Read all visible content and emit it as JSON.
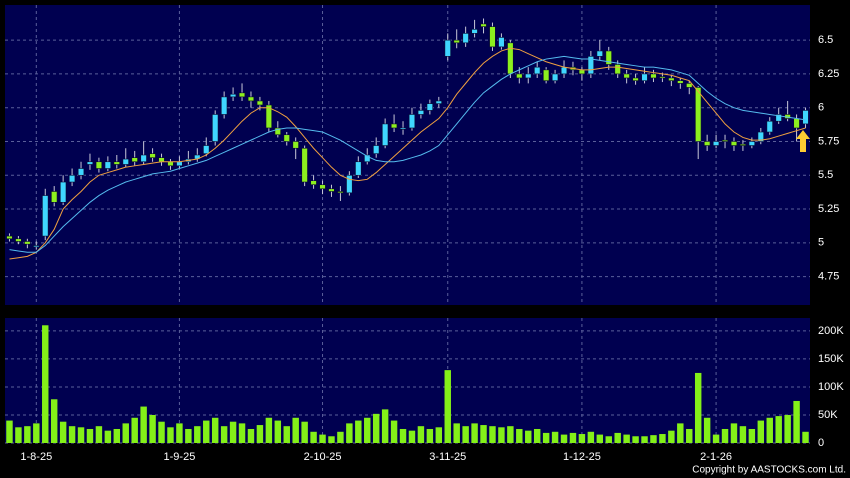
{
  "chart_data": [
    {
      "type": "candlestick",
      "up_color": "#3fd6ff",
      "down_color": "#8cf01e",
      "open": [
        5.05,
        5.03,
        5.01,
        4.97,
        5.05,
        5.38,
        5.3,
        5.45,
        5.5,
        5.58,
        5.6,
        5.55,
        5.6,
        5.58,
        5.63,
        5.6,
        5.66,
        5.63,
        5.6,
        5.57,
        5.6,
        5.62,
        5.66,
        5.75,
        5.95,
        6.08,
        6.11,
        6.08,
        6.05,
        6.02,
        5.85,
        5.8,
        5.75,
        5.7,
        5.46,
        5.43,
        5.4,
        5.38,
        5.37,
        5.5,
        5.6,
        5.66,
        5.72,
        5.88,
        5.84,
        5.85,
        5.95,
        5.98,
        6.03,
        6.38,
        6.5,
        6.48,
        6.55,
        6.62,
        6.6,
        6.45,
        6.48,
        6.25,
        6.22,
        6.25,
        6.28,
        6.2,
        6.25,
        6.3,
        6.28,
        6.25,
        6.38,
        6.42,
        6.32,
        6.25,
        6.22,
        6.2,
        6.25,
        6.23,
        6.22,
        6.2,
        6.18,
        6.15,
        5.75,
        5.72,
        5.76,
        5.75,
        5.73,
        5.72,
        5.75,
        5.82,
        5.9,
        5.95,
        5.92,
        5.88
      ],
      "high": [
        5.07,
        5.05,
        5.03,
        5.01,
        5.4,
        5.42,
        5.5,
        5.55,
        5.6,
        5.66,
        5.63,
        5.64,
        5.65,
        5.7,
        5.68,
        5.75,
        5.7,
        5.66,
        5.62,
        5.64,
        5.68,
        5.7,
        5.78,
        5.98,
        6.12,
        6.15,
        6.18,
        6.12,
        6.08,
        6.05,
        5.9,
        5.82,
        5.78,
        5.72,
        5.5,
        5.46,
        5.43,
        5.42,
        5.53,
        5.64,
        5.7,
        5.78,
        5.92,
        5.95,
        5.9,
        6.0,
        6.03,
        6.06,
        6.08,
        6.55,
        6.58,
        6.6,
        6.65,
        6.66,
        6.63,
        6.55,
        6.5,
        6.3,
        6.3,
        6.34,
        6.3,
        6.28,
        6.35,
        6.34,
        6.3,
        6.42,
        6.5,
        6.45,
        6.35,
        6.28,
        6.25,
        6.3,
        6.28,
        6.26,
        6.24,
        6.22,
        6.2,
        6.16,
        5.8,
        5.8,
        5.8,
        5.78,
        5.76,
        5.78,
        5.85,
        5.93,
        6.0,
        6.05,
        5.95,
        6.0
      ],
      "low": [
        5.01,
        4.99,
        4.96,
        4.95,
        5.02,
        5.27,
        5.28,
        5.42,
        5.47,
        5.54,
        5.52,
        5.53,
        5.55,
        5.56,
        5.57,
        5.58,
        5.6,
        5.57,
        5.54,
        5.55,
        5.58,
        5.6,
        5.64,
        5.72,
        5.92,
        6.05,
        6.05,
        6.0,
        5.98,
        5.82,
        5.78,
        5.72,
        5.62,
        5.42,
        5.4,
        5.36,
        5.34,
        5.31,
        5.35,
        5.48,
        5.58,
        5.63,
        5.7,
        5.82,
        5.8,
        5.83,
        5.92,
        5.95,
        6.0,
        6.35,
        6.44,
        6.45,
        6.52,
        6.55,
        6.42,
        6.43,
        6.22,
        6.18,
        6.18,
        6.22,
        6.18,
        6.18,
        6.22,
        6.24,
        6.2,
        6.22,
        6.35,
        6.28,
        6.22,
        6.18,
        6.17,
        6.18,
        6.19,
        6.19,
        6.16,
        6.14,
        6.1,
        5.62,
        5.68,
        5.7,
        5.7,
        5.68,
        5.68,
        5.7,
        5.73,
        5.8,
        5.88,
        5.9,
        5.75,
        5.85
      ],
      "close": [
        5.03,
        5.01,
        4.99,
        4.98,
        5.35,
        5.3,
        5.45,
        5.5,
        5.55,
        5.6,
        5.55,
        5.6,
        5.58,
        5.62,
        5.6,
        5.65,
        5.63,
        5.6,
        5.57,
        5.6,
        5.62,
        5.65,
        5.72,
        5.95,
        6.08,
        6.1,
        6.08,
        6.05,
        6.02,
        5.85,
        5.8,
        5.75,
        5.7,
        5.45,
        5.43,
        5.4,
        5.38,
        5.37,
        5.5,
        5.6,
        5.65,
        5.72,
        5.88,
        5.85,
        5.85,
        5.95,
        5.98,
        6.03,
        6.05,
        6.5,
        6.48,
        6.55,
        6.58,
        6.6,
        6.45,
        6.52,
        6.25,
        6.22,
        6.25,
        6.3,
        6.2,
        6.25,
        6.3,
        6.28,
        6.25,
        6.38,
        6.42,
        6.32,
        6.25,
        6.22,
        6.2,
        6.25,
        6.22,
        6.22,
        6.2,
        6.18,
        6.15,
        5.75,
        5.72,
        5.75,
        5.75,
        5.72,
        5.72,
        5.75,
        5.82,
        5.9,
        5.95,
        5.92,
        5.85,
        5.98
      ],
      "series": [
        {
          "color": "#f0a040",
          "values": [
            4.88,
            4.89,
            4.9,
            4.93,
            5.0,
            5.1,
            5.25,
            5.32,
            5.38,
            5.45,
            5.5,
            5.52,
            5.54,
            5.56,
            5.57,
            5.58,
            5.59,
            5.6,
            5.6,
            5.6,
            5.61,
            5.62,
            5.65,
            5.7,
            5.76,
            5.83,
            5.9,
            5.96,
            6.0,
            6.0,
            5.97,
            5.93,
            5.86,
            5.78,
            5.7,
            5.63,
            5.56,
            5.5,
            5.47,
            5.46,
            5.47,
            5.52,
            5.58,
            5.64,
            5.7,
            5.76,
            5.82,
            5.87,
            5.92,
            6.0,
            6.1,
            6.18,
            6.26,
            6.33,
            6.38,
            6.42,
            6.44,
            6.43,
            6.4,
            6.37,
            6.34,
            6.32,
            6.3,
            6.29,
            6.28,
            6.28,
            6.29,
            6.3,
            6.3,
            6.29,
            6.28,
            6.27,
            6.26,
            6.25,
            6.24,
            6.22,
            6.2,
            6.12,
            6.04,
            5.96,
            5.88,
            5.82,
            5.78,
            5.76,
            5.76,
            5.77,
            5.79,
            5.81,
            5.83,
            5.85
          ]
        },
        {
          "color": "#55bbee",
          "values": [
            4.95,
            4.94,
            4.93,
            4.93,
            4.98,
            5.05,
            5.12,
            5.18,
            5.24,
            5.3,
            5.35,
            5.39,
            5.42,
            5.45,
            5.47,
            5.49,
            5.51,
            5.52,
            5.53,
            5.55,
            5.57,
            5.59,
            5.61,
            5.64,
            5.67,
            5.7,
            5.73,
            5.76,
            5.79,
            5.82,
            5.84,
            5.85,
            5.85,
            5.84,
            5.83,
            5.82,
            5.79,
            5.76,
            5.72,
            5.68,
            5.64,
            5.61,
            5.6,
            5.6,
            5.61,
            5.63,
            5.65,
            5.68,
            5.72,
            5.8,
            5.88,
            5.96,
            6.04,
            6.11,
            6.16,
            6.21,
            6.25,
            6.28,
            6.31,
            6.34,
            6.36,
            6.37,
            6.38,
            6.37,
            6.36,
            6.36,
            6.35,
            6.34,
            6.33,
            6.32,
            6.31,
            6.3,
            6.3,
            6.29,
            6.28,
            6.26,
            6.24,
            6.18,
            6.12,
            6.07,
            6.03,
            6.0,
            5.98,
            5.97,
            5.96,
            5.95,
            5.94,
            5.93,
            5.92,
            5.91
          ]
        }
      ],
      "ylim": [
        4.54,
        6.76
      ],
      "yticks": [
        6.5,
        6.25,
        6,
        5.75,
        5.5,
        5.25,
        5,
        4.75
      ],
      "grid": true
    },
    {
      "type": "bar",
      "color": "#84f018",
      "categories": [
        null,
        null,
        null,
        "1-8-25",
        null,
        null,
        null,
        null,
        null,
        null,
        null,
        null,
        null,
        null,
        null,
        null,
        null,
        null,
        null,
        "1-9-25",
        null,
        null,
        null,
        null,
        null,
        null,
        null,
        null,
        null,
        null,
        null,
        null,
        null,
        null,
        null,
        "2-10-25",
        null,
        null,
        null,
        null,
        null,
        null,
        null,
        null,
        null,
        null,
        null,
        null,
        null,
        "3-11-25",
        null,
        null,
        null,
        null,
        null,
        null,
        null,
        null,
        null,
        null,
        null,
        null,
        null,
        null,
        "1-12-25",
        null,
        null,
        null,
        null,
        null,
        null,
        null,
        null,
        null,
        null,
        null,
        null,
        null,
        null,
        "2-1-26",
        null,
        null,
        null,
        null,
        null,
        null,
        null,
        null,
        null,
        null
      ],
      "values": [
        40000,
        28000,
        30000,
        35000,
        210000,
        78000,
        38000,
        30000,
        28000,
        25000,
        30000,
        22000,
        25000,
        35000,
        45000,
        65000,
        50000,
        38000,
        28000,
        35000,
        25000,
        30000,
        40000,
        45000,
        30000,
        38000,
        35000,
        25000,
        32000,
        45000,
        40000,
        30000,
        45000,
        38000,
        20000,
        15000,
        12000,
        20000,
        35000,
        40000,
        45000,
        52000,
        60000,
        40000,
        25000,
        22000,
        30000,
        25000,
        28000,
        130000,
        35000,
        30000,
        35000,
        32000,
        30000,
        28000,
        30000,
        25000,
        22000,
        25000,
        18000,
        20000,
        15000,
        18000,
        16000,
        20000,
        15000,
        12000,
        18000,
        15000,
        12000,
        12000,
        14000,
        16000,
        22000,
        35000,
        25000,
        125000,
        45000,
        15000,
        25000,
        35000,
        30000,
        25000,
        40000,
        45000,
        48000,
        50000,
        75000,
        20000
      ],
      "ylim": [
        0,
        223000
      ],
      "yticks": [
        {
          "value": 200000,
          "label": "200K"
        },
        {
          "value": 150000,
          "label": "150K"
        },
        {
          "value": 100000,
          "label": "100K"
        },
        {
          "value": 50000,
          "label": "50K"
        },
        0
      ],
      "grid": true
    }
  ],
  "footer": {
    "copyright": "Copyright by AASTOCKS.com Ltd."
  }
}
